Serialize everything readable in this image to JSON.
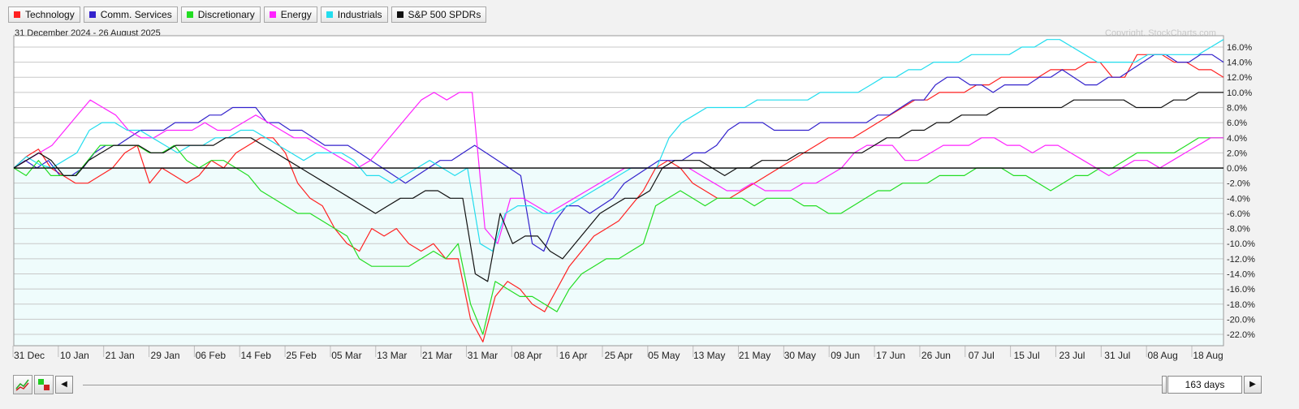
{
  "legend": [
    {
      "label": "Technology",
      "color": "#ff2020"
    },
    {
      "label": "Comm. Services",
      "color": "#3322cc"
    },
    {
      "label": "Discretionary",
      "color": "#22dd22"
    },
    {
      "label": "Energy",
      "color": "#ff22ff"
    },
    {
      "label": "Industrials",
      "color": "#22ddee"
    },
    {
      "label": "S&P 500 SPDRs",
      "color": "#111111"
    }
  ],
  "header": {
    "date_range": "31 December 2024 - 26 August 2025",
    "copyright": "Copyright, StockCharts.com"
  },
  "controls": {
    "prev_icon": "left-arrow",
    "next_icon": "right-arrow",
    "days_label": "163 days"
  },
  "chart_data": {
    "type": "line",
    "y_unit": "%",
    "ylim": [
      -23.5,
      17.5
    ],
    "y_ticks": [
      "16.0%",
      "14.0%",
      "12.0%",
      "10.0%",
      "8.0%",
      "6.0%",
      "4.0%",
      "2.0%",
      "0.0%",
      "-2.0%",
      "-4.0%",
      "-6.0%",
      "-8.0%",
      "-10.0%",
      "-12.0%",
      "-14.0%",
      "-16.0%",
      "-18.0%",
      "-20.0%",
      "-22.0%"
    ],
    "x_tick_labels": [
      "31 Dec",
      "10 Jan",
      "21 Jan",
      "29 Jan",
      "06 Feb",
      "14 Feb",
      "25 Feb",
      "05 Mar",
      "13 Mar",
      "21 Mar",
      "31 Mar",
      "08 Apr",
      "16 Apr",
      "25 Apr",
      "05 May",
      "13 May",
      "21 May",
      "30 May",
      "09 Jun",
      "17 Jun",
      "26 Jun",
      "07 Jul",
      "15 Jul",
      "23 Jul",
      "31 Jul",
      "08 Aug",
      "18 Aug"
    ],
    "grid": true,
    "series": [
      {
        "name": "Technology",
        "color": "#ff2020",
        "values": [
          0,
          1.5,
          2.5,
          0,
          -1,
          -2,
          -2,
          -1,
          0,
          2,
          3,
          -2,
          0,
          -1,
          -2,
          -1,
          1,
          0,
          2,
          3,
          4,
          4,
          2,
          -2,
          -4,
          -5,
          -8,
          -10,
          -11,
          -8,
          -9,
          -8,
          -10,
          -11,
          -10,
          -12,
          -12,
          -20,
          -23,
          -17,
          -15,
          -16,
          -18,
          -19,
          -16,
          -13,
          -11,
          -9,
          -8,
          -7,
          -5,
          -3,
          0,
          1,
          0,
          -2,
          -3,
          -4,
          -4,
          -3,
          -2,
          -1,
          0,
          1,
          2,
          3,
          4,
          4,
          4,
          5,
          6,
          7,
          8,
          9,
          9,
          10,
          10,
          10,
          11,
          11,
          12,
          12,
          12,
          12,
          13,
          13,
          13,
          14,
          14,
          12,
          12,
          15,
          15,
          15,
          14,
          14,
          13,
          13,
          12
        ]
      },
      {
        "name": "Comm. Services",
        "color": "#3322cc",
        "values": [
          0,
          1,
          0,
          1,
          -1,
          -1,
          0,
          2,
          3,
          3,
          4,
          5,
          5,
          5,
          6,
          6,
          6,
          7,
          7,
          8,
          8,
          8,
          6,
          6,
          5,
          5,
          4,
          3,
          3,
          3,
          2,
          1,
          0,
          -1,
          -2,
          -1,
          0,
          1,
          1,
          2,
          3,
          2,
          1,
          0,
          -1,
          -10,
          -11,
          -7,
          -5,
          -5,
          -6,
          -5,
          -4,
          -2,
          -1,
          0,
          1,
          1,
          1,
          2,
          2,
          3,
          5,
          6,
          6,
          6,
          5,
          5,
          5,
          5,
          6,
          6,
          6,
          6,
          6,
          7,
          7,
          8,
          9,
          9,
          11,
          12,
          12,
          11,
          11,
          10,
          11,
          11,
          11,
          12,
          12,
          13,
          12,
          11,
          11,
          12,
          12,
          13,
          14,
          15,
          15,
          14,
          14,
          15,
          15,
          14
        ]
      },
      {
        "name": "Discretionary",
        "color": "#22dd22",
        "values": [
          0,
          -1,
          1,
          -1,
          -1,
          -1,
          1,
          3,
          3,
          3,
          3,
          2,
          2,
          3,
          1,
          0,
          1,
          1,
          0,
          -1,
          -3,
          -4,
          -5,
          -6,
          -6,
          -7,
          -8,
          -9,
          -12,
          -13,
          -13,
          -13,
          -13,
          -12,
          -11,
          -12,
          -10,
          -18,
          -22,
          -15,
          -16,
          -17,
          -17,
          -18,
          -19,
          -16,
          -14,
          -13,
          -12,
          -12,
          -11,
          -10,
          -5,
          -4,
          -3,
          -4,
          -5,
          -4,
          -4,
          -4,
          -5,
          -4,
          -4,
          -4,
          -5,
          -5,
          -6,
          -6,
          -5,
          -4,
          -3,
          -3,
          -2,
          -2,
          -2,
          -1,
          -1,
          -1,
          0,
          0,
          0,
          -1,
          -1,
          -2,
          -3,
          -2,
          -1,
          -1,
          0,
          0,
          1,
          2,
          2,
          2,
          2,
          3,
          4,
          4,
          4
        ]
      },
      {
        "name": "Energy",
        "color": "#ff22ff",
        "values": [
          0,
          1,
          2,
          3,
          5,
          7,
          9,
          8,
          7,
          5,
          4,
          4,
          5,
          5,
          5,
          6,
          5,
          5,
          6,
          7,
          6,
          5,
          4,
          4,
          3,
          2,
          1,
          0,
          1,
          3,
          5,
          7,
          9,
          10,
          9,
          10,
          10,
          -8,
          -10,
          -4,
          -4,
          -5,
          -6,
          -5,
          -4,
          -3,
          -2,
          -1,
          0,
          0,
          0,
          0,
          0,
          0,
          -1,
          -2,
          -3,
          -3,
          -2,
          -3,
          -3,
          -3,
          -2,
          -2,
          -1,
          0,
          2,
          3,
          3,
          3,
          1,
          1,
          2,
          3,
          3,
          3,
          4,
          4,
          3,
          3,
          2,
          3,
          3,
          2,
          1,
          0,
          -1,
          0,
          1,
          1,
          0,
          1,
          2,
          3,
          4,
          4
        ]
      },
      {
        "name": "Industrials",
        "color": "#22ddee",
        "values": [
          0,
          1.5,
          0.5,
          0,
          1,
          2,
          5,
          6,
          6,
          5,
          5,
          4,
          3,
          2,
          3,
          3,
          4,
          4,
          5,
          5,
          4,
          3,
          2,
          1,
          2,
          2,
          2,
          1,
          -1,
          -1,
          -2,
          -1,
          0,
          1,
          0,
          -1,
          0,
          -10,
          -11,
          -6,
          -5,
          -5,
          -6,
          -6,
          -5,
          -4,
          -3,
          -2,
          -1,
          0,
          0,
          0,
          4,
          6,
          7,
          8,
          8,
          8,
          8,
          9,
          9,
          9,
          9,
          9,
          10,
          10,
          10,
          10,
          11,
          12,
          12,
          13,
          13,
          14,
          14,
          14,
          15,
          15,
          15,
          15,
          16,
          16,
          17,
          17,
          16,
          15,
          14,
          14,
          14,
          14,
          15,
          15,
          15,
          15,
          15,
          16,
          17
        ]
      },
      {
        "name": "S&P 500 SPDRs",
        "color": "#111111",
        "values": [
          0,
          1,
          2,
          1,
          -1,
          -1,
          1,
          2,
          3,
          3,
          3,
          2,
          2,
          3,
          3,
          3,
          3,
          4,
          4,
          4,
          3,
          2,
          1,
          0,
          -1,
          -2,
          -3,
          -4,
          -5,
          -6,
          -5,
          -4,
          -4,
          -3,
          -3,
          -4,
          -4,
          -14,
          -15,
          -6,
          -10,
          -9,
          -9,
          -11,
          -12,
          -10,
          -8,
          -6,
          -5,
          -4,
          -4,
          -3,
          0,
          1,
          1,
          1,
          0,
          -1,
          0,
          0,
          1,
          1,
          1,
          2,
          2,
          2,
          2,
          2,
          2,
          3,
          4,
          4,
          5,
          5,
          6,
          6,
          7,
          7,
          7,
          8,
          8,
          8,
          8,
          8,
          8,
          9,
          9,
          9,
          9,
          9,
          8,
          8,
          8,
          9,
          9,
          10,
          10,
          10
        ]
      }
    ]
  }
}
